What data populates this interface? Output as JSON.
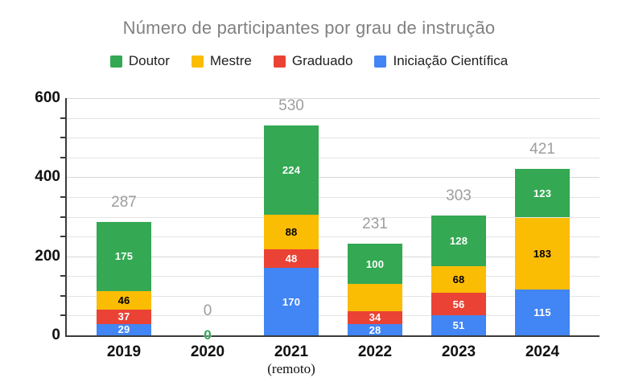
{
  "chart_data": {
    "type": "bar",
    "stacked": true,
    "title": "Número de participantes por grau de instrução",
    "categories": [
      "2019",
      "2020",
      "2021",
      "2022",
      "2023",
      "2024"
    ],
    "category_sublabels": [
      "",
      "",
      "(remoto)",
      "",
      "",
      ""
    ],
    "series": [
      {
        "name": "Doutor",
        "color": "#34A853",
        "label_color": "#ffffff",
        "values": [
          175,
          0,
          224,
          100,
          128,
          123
        ],
        "labels": [
          "175",
          "",
          "224",
          "100",
          "128",
          "123"
        ]
      },
      {
        "name": "Mestre",
        "color": "#FBBC04",
        "label_color": "#000000",
        "values": [
          46,
          0,
          88,
          69,
          68,
          183
        ],
        "labels": [
          "46",
          "",
          "88",
          "",
          "68",
          "183"
        ]
      },
      {
        "name": "Graduado",
        "color": "#EA4335",
        "label_color": "#ffffff",
        "values": [
          37,
          0,
          48,
          34,
          56,
          0
        ],
        "labels": [
          "37",
          "",
          "48",
          "34",
          "56",
          ""
        ]
      },
      {
        "name": "Iniciação Científica",
        "color": "#4285F4",
        "label_color": "#ffffff",
        "values": [
          29,
          0,
          170,
          28,
          51,
          115
        ],
        "labels": [
          "29",
          "",
          "170",
          "28",
          "51",
          "115"
        ]
      }
    ],
    "stack_order_bottom_to_top": [
      "Iniciação Científica",
      "Graduado",
      "Mestre",
      "Doutor"
    ],
    "totals": [
      287,
      0,
      530,
      231,
      303,
      421
    ],
    "zero_marker": {
      "text": "0",
      "color": "#34A853",
      "category": "2020"
    },
    "ylim": [
      0,
      600
    ],
    "yticks": [
      0,
      200,
      400,
      600
    ],
    "minor_tick_step": 50,
    "grid": true,
    "legend_position": "top",
    "colors": {
      "title": "#818181",
      "totals": "#9e9e9e",
      "axis": "#3b3b3b"
    }
  }
}
